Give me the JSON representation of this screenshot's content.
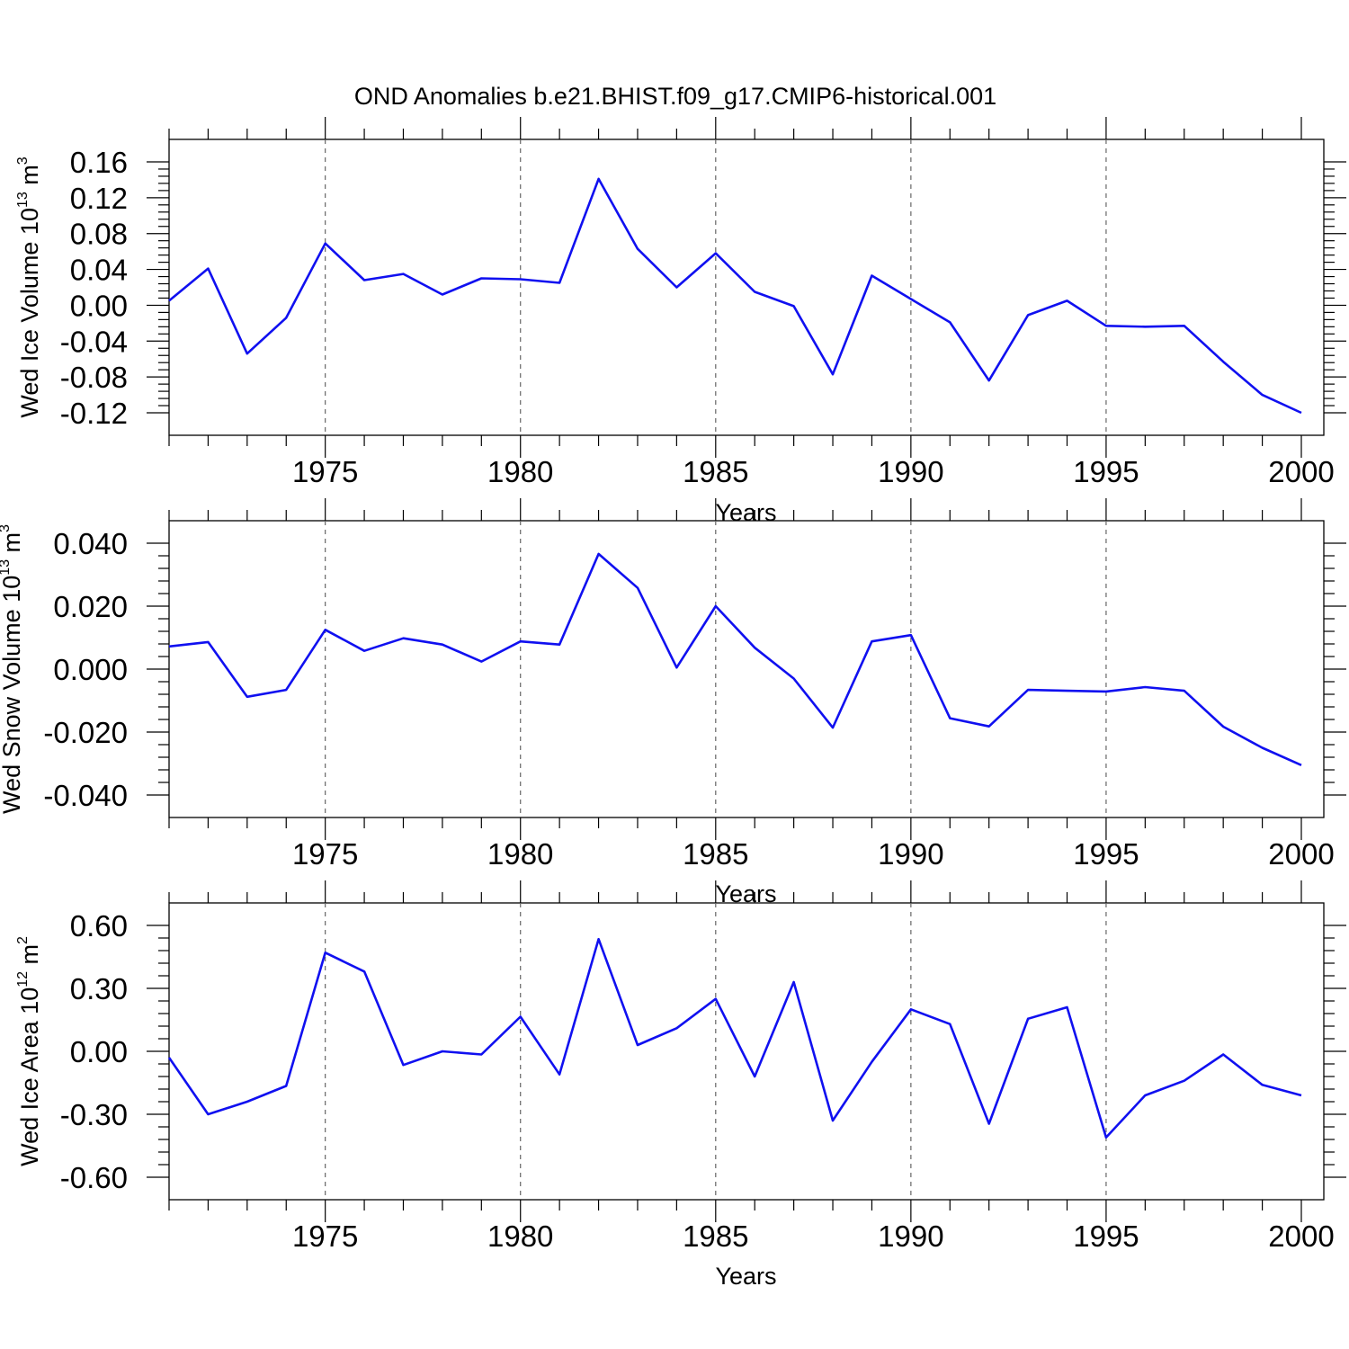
{
  "title": "OND Anomalies b.e21.BHIST.f09_g17.CMIP6-historical.001",
  "colors": {
    "series": "#1010f0",
    "axis": "#000000",
    "grid": "#666666"
  },
  "chart_data": [
    {
      "type": "line",
      "ylabel": {
        "text": "Wed Ice Volume 10",
        "exp": "13",
        "unit": " m",
        "unit_exp": "3"
      },
      "xlabel": "Years",
      "xlim": [
        1971,
        2000
      ],
      "ylim": [
        -0.12,
        0.16
      ],
      "yticks": [
        "0.16",
        "0.12",
        "0.08",
        "0.04",
        "0.00",
        "-0.04",
        "-0.08",
        "-0.12"
      ],
      "xticks": [
        "1975",
        "1980",
        "1985",
        "1990",
        "1995",
        "2000"
      ],
      "grid_x": [
        1975,
        1980,
        1985,
        1990,
        1995
      ],
      "x": [
        1971,
        1972,
        1973,
        1974,
        1975,
        1976,
        1977,
        1978,
        1979,
        1980,
        1981,
        1982,
        1983,
        1984,
        1985,
        1986,
        1987,
        1988,
        1989,
        1990,
        1991,
        1992,
        1993,
        1994,
        1995,
        1996,
        1997,
        1998,
        1999,
        2000
      ],
      "values": [
        0.005,
        0.041,
        -0.054,
        -0.014,
        0.069,
        0.028,
        0.035,
        0.012,
        0.03,
        0.029,
        0.025,
        0.141,
        0.063,
        0.02,
        0.058,
        0.015,
        -0.001,
        -0.077,
        0.033,
        0.007,
        -0.019,
        -0.084,
        -0.011,
        0.005,
        -0.023,
        -0.024,
        -0.023,
        -0.063,
        -0.1,
        -0.12
      ]
    },
    {
      "type": "line",
      "ylabel": {
        "text": "Wed Snow Volume 10",
        "exp": "13",
        "unit": " m",
        "unit_exp": "3"
      },
      "xlabel": "Years",
      "xlim": [
        1971,
        2000
      ],
      "ylim": [
        -0.04,
        0.04
      ],
      "yticks": [
        "0.040",
        "0.020",
        "0.000",
        "-0.020",
        "-0.040"
      ],
      "xticks": [
        "1975",
        "1980",
        "1985",
        "1990",
        "1995",
        "2000"
      ],
      "grid_x": [
        1975,
        1980,
        1985,
        1990,
        1995
      ],
      "x": [
        1971,
        1972,
        1973,
        1974,
        1975,
        1976,
        1977,
        1978,
        1979,
        1980,
        1981,
        1982,
        1983,
        1984,
        1985,
        1986,
        1987,
        1988,
        1989,
        1990,
        1991,
        1992,
        1993,
        1994,
        1995,
        1996,
        1997,
        1998,
        1999,
        2000
      ],
      "values": [
        0.0072,
        0.0086,
        -0.0088,
        -0.0066,
        0.0125,
        0.0058,
        0.0098,
        0.0078,
        0.0024,
        0.0088,
        0.0078,
        0.0366,
        0.0258,
        0.0005,
        0.02,
        0.0068,
        -0.003,
        -0.0186,
        0.0088,
        0.0108,
        -0.0156,
        -0.0182,
        -0.0066,
        -0.0069,
        -0.0071,
        -0.0057,
        -0.0069,
        -0.0183,
        -0.025,
        -0.0305
      ]
    },
    {
      "type": "line",
      "ylabel": {
        "text": "Wed Ice Area 10",
        "exp": "12",
        "unit": " m",
        "unit_exp": "2"
      },
      "xlabel": "Years",
      "xlim": [
        1971,
        2000
      ],
      "ylim": [
        -0.6,
        0.6
      ],
      "yticks": [
        "0.60",
        "0.30",
        "0.00",
        "-0.30",
        "-0.60"
      ],
      "xticks": [
        "1975",
        "1980",
        "1985",
        "1990",
        "1995",
        "2000"
      ],
      "grid_x": [
        1975,
        1980,
        1985,
        1990,
        1995
      ],
      "x": [
        1971,
        1972,
        1973,
        1974,
        1975,
        1976,
        1977,
        1978,
        1979,
        1980,
        1981,
        1982,
        1983,
        1984,
        1985,
        1986,
        1987,
        1988,
        1989,
        1990,
        1991,
        1992,
        1993,
        1994,
        1995,
        1996,
        1997,
        1998,
        1999,
        2000
      ],
      "values": [
        -0.03,
        -0.3,
        -0.24,
        -0.165,
        0.47,
        0.38,
        -0.065,
        0.0,
        -0.015,
        0.165,
        -0.11,
        0.535,
        0.03,
        0.11,
        0.25,
        -0.12,
        0.33,
        -0.33,
        -0.05,
        0.2,
        0.13,
        -0.345,
        0.155,
        0.21,
        -0.41,
        -0.21,
        -0.14,
        -0.015,
        -0.16,
        -0.21
      ]
    }
  ]
}
